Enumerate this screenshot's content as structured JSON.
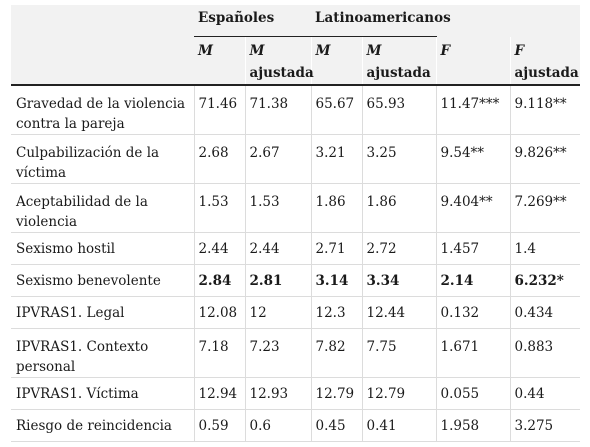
{
  "header": {
    "groups": [
      "Españoles",
      "Latinoamericanos"
    ],
    "columns": [
      {
        "sym": "M",
        "sub": ""
      },
      {
        "sym": "M",
        "sub": "ajustada"
      },
      {
        "sym": "M",
        "sub": ""
      },
      {
        "sym": "M",
        "sub": "ajustada"
      },
      {
        "sym": "F",
        "sub": ""
      },
      {
        "sym": "F",
        "sub": "ajustada"
      }
    ]
  },
  "rows": [
    {
      "label": "Gravedad de la violencia contra la pareja",
      "values": [
        "71.46",
        "71.38",
        "65.67",
        "65.93",
        "11.47***",
        "9.118**"
      ]
    },
    {
      "label": "Culpabilización de la víctima",
      "values": [
        "2.68",
        "2.67",
        "3.21",
        "3.25",
        "9.54**",
        "9.826**"
      ]
    },
    {
      "label": "Aceptabilidad de la violencia",
      "values": [
        "1.53",
        "1.53",
        "1.86",
        "1.86",
        "9.404**",
        "7.269**"
      ]
    },
    {
      "label": "Sexismo hostil",
      "values": [
        "2.44",
        "2.44",
        "2.71",
        "2.72",
        "1.457",
        "1.4"
      ]
    },
    {
      "label": "Sexismo benevolente",
      "values": [
        "2.84",
        "2.81",
        "3.14",
        "3.34",
        "2.14",
        "6.232*"
      ]
    },
    {
      "label": "IPVRAS1. Legal",
      "values": [
        "12.08",
        "12",
        "12.3",
        "12.44",
        "0.132",
        "0.434"
      ]
    },
    {
      "label": "IPVRAS1. Contexto personal",
      "values": [
        "7.18",
        "7.23",
        "7.82",
        "7.75",
        "1.671",
        "0.883"
      ]
    },
    {
      "label": "IPVRAS1. Víctima",
      "values": [
        "12.94",
        "12.93",
        "12.79",
        "12.79",
        "0.055",
        "0.44"
      ]
    },
    {
      "label": "Riesgo de reincidencia",
      "values": [
        "0.59",
        "0.6",
        "0.45",
        "0.41",
        "1.958",
        "3.275"
      ]
    }
  ]
}
